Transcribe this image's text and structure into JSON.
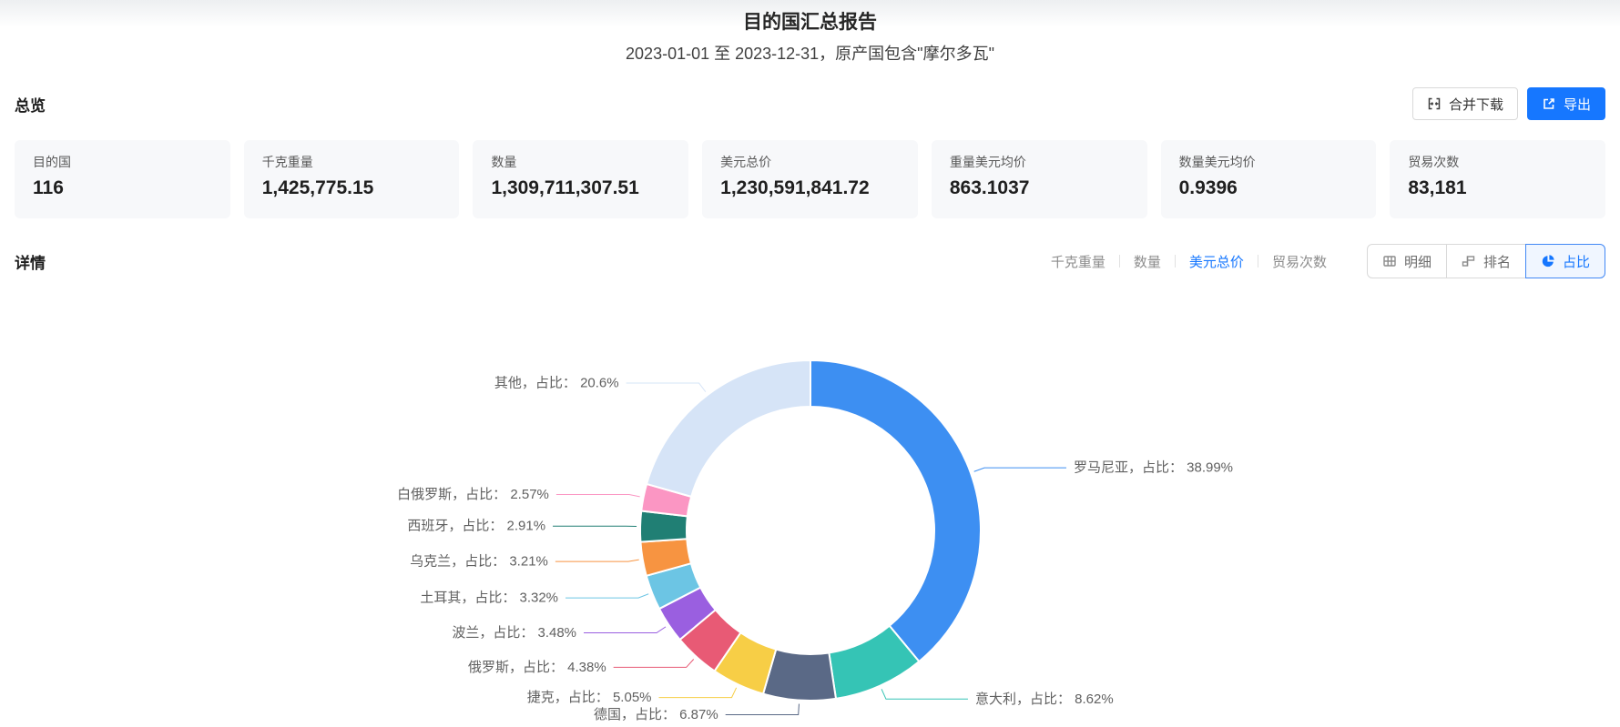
{
  "page": {
    "title": "目的国汇总报告",
    "subtitle": "2023-01-01 至 2023-12-31，原产国包含\"摩尔多瓦\""
  },
  "overview": {
    "heading": "总览",
    "merge_download_label": "合并下载",
    "export_label": "导出",
    "cards": [
      {
        "label": "目的国",
        "value": "116"
      },
      {
        "label": "千克重量",
        "value": "1,425,775.15"
      },
      {
        "label": "数量",
        "value": "1,309,711,307.51"
      },
      {
        "label": "美元总价",
        "value": "1,230,591,841.72"
      },
      {
        "label": "重量美元均价",
        "value": "863.1037"
      },
      {
        "label": "数量美元均价",
        "value": "0.9396"
      },
      {
        "label": "贸易次数",
        "value": "83,181"
      }
    ]
  },
  "detail": {
    "heading": "详情",
    "metric_tabs": [
      {
        "label": "千克重量"
      },
      {
        "label": "数量"
      },
      {
        "label": "美元总价"
      },
      {
        "label": "贸易次数"
      }
    ],
    "active_metric": "美元总价",
    "view_buttons": [
      {
        "label": "明细",
        "icon": "table-icon"
      },
      {
        "label": "排名",
        "icon": "ranking-icon"
      },
      {
        "label": "占比",
        "icon": "pie-icon"
      }
    ],
    "active_view": "占比"
  },
  "colors": {
    "accent": "#1677ff",
    "label_text": "#606060"
  },
  "chart_data": {
    "type": "pie",
    "donut": true,
    "start_angle_deg": 0,
    "clockwise": true,
    "label_format": "{name}，占比： {value}%",
    "series": [
      {
        "name": "罗马尼亚",
        "value": 38.99,
        "color": "#3d8ff2"
      },
      {
        "name": "意大利",
        "value": 8.62,
        "color": "#35c4b5"
      },
      {
        "name": "德国",
        "value": 6.87,
        "color": "#5a6986"
      },
      {
        "name": "捷克",
        "value": 5.05,
        "color": "#f7ce46"
      },
      {
        "name": "俄罗斯",
        "value": 4.38,
        "color": "#e85a75"
      },
      {
        "name": "波兰",
        "value": 3.48,
        "color": "#9a5fe0"
      },
      {
        "name": "土耳其",
        "value": 3.32,
        "color": "#6cc5e4"
      },
      {
        "name": "乌克兰",
        "value": 3.21,
        "color": "#f79441"
      },
      {
        "name": "西班牙",
        "value": 2.91,
        "color": "#207f74"
      },
      {
        "name": "白俄罗斯",
        "value": 2.57,
        "color": "#fb96c3"
      },
      {
        "name": "其他",
        "value": 20.6,
        "color": "#d6e4f7"
      }
    ]
  }
}
